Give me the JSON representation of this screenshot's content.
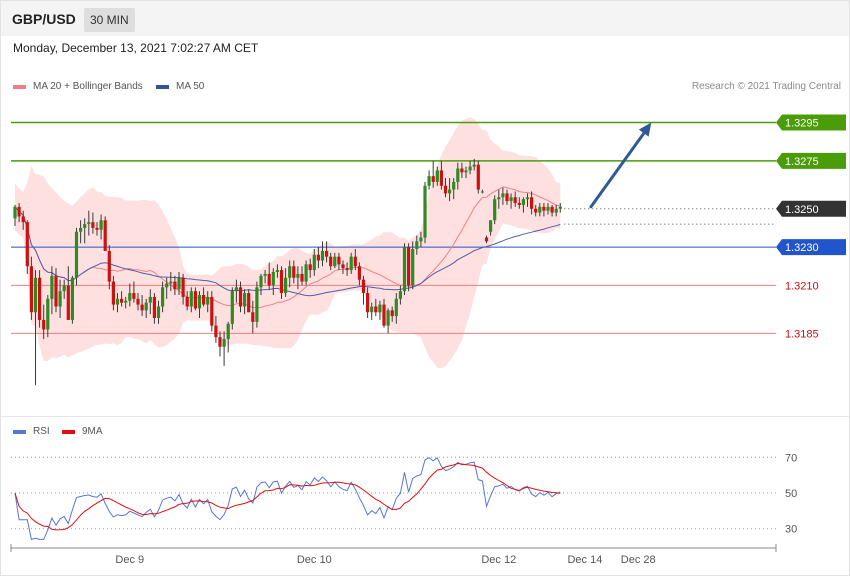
{
  "header": {
    "symbol": "GBP/USD",
    "timeframe": "30 MIN",
    "datetime": "Monday, December 13, 2021 7:02:27 AM CET",
    "credit": "Research © 2021 Trading Central"
  },
  "legend": {
    "ma20_label": "MA 20 + Bollinger Bands",
    "ma50_label": "MA 50",
    "rsi_label": "RSI",
    "ma9_label": "9MA"
  },
  "colors": {
    "bull": "#2e8b22",
    "bear": "#cc1111",
    "band_fill": "#ffd5d5",
    "ma20": "#f08080",
    "ma50": "#4a5fa8",
    "resistance": "#4a9c0a",
    "support": "#f08080",
    "pivot": "#2255cc",
    "current": "#333333",
    "arrow": "#2f5a96",
    "rsi": "#5577d6",
    "rsi_ma": "#dd1111"
  },
  "chart_data": [
    {
      "type": "candlestick",
      "ylim": [
        1.3145,
        1.3313
      ],
      "x_labels": [
        {
          "label": "Dec 9",
          "index": 28
        },
        {
          "label": "Dec 10",
          "index": 73
        },
        {
          "label": "Dec 12",
          "index": 118
        },
        {
          "label": "Dec 14",
          "index": 139
        },
        {
          "label": "Dec 28",
          "index": 152
        }
      ],
      "levels": [
        {
          "value": 1.3295,
          "label": "1.3295",
          "kind": "resistance"
        },
        {
          "value": 1.3275,
          "label": "1.3275",
          "kind": "resistance"
        },
        {
          "value": 1.325,
          "label": "1.3250",
          "kind": "current"
        },
        {
          "value": 1.323,
          "label": "1.3230",
          "kind": "pivot"
        },
        {
          "value": 1.321,
          "label": "1.3210",
          "kind": "support"
        },
        {
          "value": 1.3185,
          "label": "1.3185",
          "kind": "support"
        }
      ],
      "projection": {
        "from": {
          "index": 139,
          "value": 1.3251
        },
        "to": {
          "index": 153,
          "value": 1.3295
        }
      },
      "candles": [
        [
          1.3245,
          1.3252,
          1.3241,
          1.3251
        ],
        [
          1.3251,
          1.3253,
          1.3243,
          1.3246
        ],
        [
          1.3246,
          1.3249,
          1.3239,
          1.3243
        ],
        [
          1.3243,
          1.3244,
          1.3216,
          1.322
        ],
        [
          1.322,
          1.3225,
          1.3192,
          1.3196
        ],
        [
          1.3196,
          1.3218,
          1.3158,
          1.3214
        ],
        [
          1.3214,
          1.3218,
          1.3188,
          1.3192
        ],
        [
          1.3192,
          1.32,
          1.3182,
          1.3187
        ],
        [
          1.3187,
          1.3205,
          1.3183,
          1.3203
        ],
        [
          1.3203,
          1.322,
          1.3195,
          1.3215
        ],
        [
          1.3215,
          1.3219,
          1.3196,
          1.3199
        ],
        [
          1.3199,
          1.3213,
          1.3193,
          1.3207
        ],
        [
          1.3207,
          1.3213,
          1.3203,
          1.321
        ],
        [
          1.321,
          1.322,
          1.3192,
          1.3192
        ],
        [
          1.3192,
          1.3215,
          1.319,
          1.3214
        ],
        [
          1.3214,
          1.324,
          1.321,
          1.3238
        ],
        [
          1.3238,
          1.3244,
          1.3232,
          1.324
        ],
        [
          1.324,
          1.3245,
          1.3232,
          1.3242
        ],
        [
          1.3242,
          1.3249,
          1.3236,
          1.3243
        ],
        [
          1.3243,
          1.3248,
          1.3237,
          1.324
        ],
        [
          1.324,
          1.3243,
          1.3236,
          1.3239
        ],
        [
          1.3239,
          1.3247,
          1.3234,
          1.3244
        ],
        [
          1.3244,
          1.3246,
          1.3228,
          1.3228
        ],
        [
          1.3228,
          1.3231,
          1.3208,
          1.3212
        ],
        [
          1.3212,
          1.3215,
          1.3197,
          1.32
        ],
        [
          1.32,
          1.3206,
          1.3196,
          1.3203
        ],
        [
          1.3203,
          1.3207,
          1.3199,
          1.3201
        ],
        [
          1.3201,
          1.3204,
          1.3198,
          1.3202
        ],
        [
          1.3202,
          1.3211,
          1.3199,
          1.3206
        ],
        [
          1.3206,
          1.3212,
          1.3201,
          1.3203
        ],
        [
          1.3203,
          1.3206,
          1.3197,
          1.32
        ],
        [
          1.32,
          1.3205,
          1.3194,
          1.3197
        ],
        [
          1.3197,
          1.3203,
          1.3193,
          1.3201
        ],
        [
          1.3201,
          1.3208,
          1.3195,
          1.3204
        ],
        [
          1.3204,
          1.3206,
          1.319,
          1.3193
        ],
        [
          1.3193,
          1.3202,
          1.319,
          1.3199
        ],
        [
          1.3199,
          1.3212,
          1.3196,
          1.3209
        ],
        [
          1.3209,
          1.3214,
          1.3203,
          1.3211
        ],
        [
          1.3211,
          1.3217,
          1.3207,
          1.3212
        ],
        [
          1.3212,
          1.3215,
          1.3205,
          1.3208
        ],
        [
          1.3208,
          1.3217,
          1.3205,
          1.3214
        ],
        [
          1.3214,
          1.3216,
          1.32,
          1.3204
        ],
        [
          1.3204,
          1.3207,
          1.3197,
          1.3199
        ],
        [
          1.3199,
          1.3209,
          1.3196,
          1.3207
        ],
        [
          1.3207,
          1.3209,
          1.3197,
          1.3198
        ],
        [
          1.3198,
          1.3207,
          1.3193,
          1.3205
        ],
        [
          1.3205,
          1.3209,
          1.3199,
          1.32
        ],
        [
          1.32,
          1.3207,
          1.3196,
          1.3204
        ],
        [
          1.3204,
          1.3207,
          1.3186,
          1.3189
        ],
        [
          1.3189,
          1.3194,
          1.318,
          1.3183
        ],
        [
          1.3183,
          1.3186,
          1.3173,
          1.3178
        ],
        [
          1.3178,
          1.3186,
          1.3168,
          1.3182
        ],
        [
          1.3182,
          1.3191,
          1.3175,
          1.319
        ],
        [
          1.319,
          1.3209,
          1.3187,
          1.3207
        ],
        [
          1.3207,
          1.3213,
          1.3201,
          1.3209
        ],
        [
          1.3209,
          1.3212,
          1.3196,
          1.3199
        ],
        [
          1.3199,
          1.3208,
          1.3195,
          1.3206
        ],
        [
          1.3206,
          1.3208,
          1.3196,
          1.3196
        ],
        [
          1.3196,
          1.3202,
          1.3185,
          1.3191
        ],
        [
          1.3191,
          1.3212,
          1.3188,
          1.3209
        ],
        [
          1.3209,
          1.3216,
          1.3205,
          1.3215
        ],
        [
          1.3215,
          1.3218,
          1.3211,
          1.3216
        ],
        [
          1.3216,
          1.3222,
          1.3208,
          1.321
        ],
        [
          1.321,
          1.3219,
          1.3205,
          1.3217
        ],
        [
          1.3217,
          1.3221,
          1.3214,
          1.3218
        ],
        [
          1.3218,
          1.322,
          1.3203,
          1.3206
        ],
        [
          1.3206,
          1.3219,
          1.3204,
          1.3214
        ],
        [
          1.3214,
          1.3223,
          1.3209,
          1.322
        ],
        [
          1.322,
          1.3223,
          1.3211,
          1.3214
        ],
        [
          1.3214,
          1.322,
          1.3208,
          1.3216
        ],
        [
          1.3216,
          1.322,
          1.321,
          1.3212
        ],
        [
          1.3212,
          1.3223,
          1.321,
          1.3221
        ],
        [
          1.3221,
          1.3224,
          1.3214,
          1.3218
        ],
        [
          1.3218,
          1.3229,
          1.3215,
          1.3226
        ],
        [
          1.3226,
          1.323,
          1.3219,
          1.3223
        ],
        [
          1.3223,
          1.3233,
          1.322,
          1.3228
        ],
        [
          1.3228,
          1.3233,
          1.3222,
          1.3225
        ],
        [
          1.3225,
          1.3227,
          1.3218,
          1.322
        ],
        [
          1.322,
          1.3227,
          1.3219,
          1.3225
        ],
        [
          1.3225,
          1.3227,
          1.3218,
          1.3221
        ],
        [
          1.3221,
          1.3223,
          1.3216,
          1.3219
        ],
        [
          1.3219,
          1.3222,
          1.3215,
          1.3218
        ],
        [
          1.3218,
          1.3227,
          1.3216,
          1.3225
        ],
        [
          1.3225,
          1.3229,
          1.3218,
          1.322
        ],
        [
          1.322,
          1.3222,
          1.321,
          1.3213
        ],
        [
          1.3213,
          1.3215,
          1.32,
          1.3206
        ],
        [
          1.3206,
          1.3209,
          1.3193,
          1.3196
        ],
        [
          1.3196,
          1.3201,
          1.3192,
          1.3199
        ],
        [
          1.3199,
          1.3203,
          1.3194,
          1.3196
        ],
        [
          1.3196,
          1.3202,
          1.3192,
          1.32
        ],
        [
          1.32,
          1.3203,
          1.3188,
          1.3189
        ],
        [
          1.3189,
          1.3198,
          1.3185,
          1.3197
        ],
        [
          1.3197,
          1.3199,
          1.3191,
          1.3194
        ],
        [
          1.3194,
          1.3206,
          1.319,
          1.3203
        ],
        [
          1.3203,
          1.321,
          1.32,
          1.3207
        ],
        [
          1.3207,
          1.3232,
          1.3205,
          1.323
        ],
        [
          1.323,
          1.3232,
          1.3207,
          1.321
        ],
        [
          1.321,
          1.3233,
          1.3208,
          1.3229
        ],
        [
          1.3229,
          1.3236,
          1.3226,
          1.3233
        ],
        [
          1.3233,
          1.3238,
          1.323,
          1.3235
        ],
        [
          1.3235,
          1.3264,
          1.3232,
          1.3262
        ],
        [
          1.3262,
          1.327,
          1.326,
          1.3267
        ],
        [
          1.3267,
          1.3275,
          1.3261,
          1.3264
        ],
        [
          1.3264,
          1.3272,
          1.3262,
          1.327
        ],
        [
          1.327,
          1.3275,
          1.326,
          1.3262
        ],
        [
          1.3262,
          1.3266,
          1.3256,
          1.3258
        ],
        [
          1.3258,
          1.3266,
          1.3254,
          1.326
        ],
        [
          1.326,
          1.3266,
          1.3255,
          1.3264
        ],
        [
          1.3264,
          1.3274,
          1.326,
          1.3271
        ],
        [
          1.3271,
          1.3274,
          1.3266,
          1.3269
        ],
        [
          1.3269,
          1.3272,
          1.3266,
          1.327
        ],
        [
          1.327,
          1.3275,
          1.3268,
          1.3272
        ],
        [
          1.3272,
          1.3276,
          1.327,
          1.3273
        ],
        [
          1.3273,
          1.3275,
          1.3258,
          1.326
        ],
        [
          1.3259,
          1.326,
          1.3258,
          1.3259
        ],
        [
          1.3235,
          1.3236,
          1.3232,
          1.3233
        ],
        [
          1.3238,
          1.3244,
          1.3236,
          1.3244
        ],
        [
          1.3244,
          1.3257,
          1.3242,
          1.3255
        ],
        [
          1.3255,
          1.326,
          1.325,
          1.3256
        ],
        [
          1.3256,
          1.3261,
          1.3252,
          1.3258
        ],
        [
          1.3258,
          1.326,
          1.3252,
          1.3254
        ],
        [
          1.3254,
          1.3258,
          1.325,
          1.3256
        ],
        [
          1.3256,
          1.3259,
          1.3251,
          1.3253
        ],
        [
          1.3253,
          1.3256,
          1.325,
          1.3252
        ],
        [
          1.3252,
          1.3256,
          1.3248,
          1.3255
        ],
        [
          1.3255,
          1.3258,
          1.3251,
          1.3256
        ],
        [
          1.3256,
          1.3259,
          1.3247,
          1.325
        ],
        [
          1.325,
          1.3252,
          1.3246,
          1.3248
        ],
        [
          1.3248,
          1.3253,
          1.3246,
          1.3251
        ],
        [
          1.3251,
          1.3253,
          1.3246,
          1.3249
        ],
        [
          1.3249,
          1.3253,
          1.3247,
          1.3251
        ],
        [
          1.3251,
          1.3252,
          1.3246,
          1.3248
        ],
        [
          1.3248,
          1.3252,
          1.3246,
          1.325
        ],
        [
          1.325,
          1.3253,
          1.3248,
          1.3251
        ]
      ]
    },
    {
      "type": "line",
      "levels": [
        {
          "value": 70,
          "label": "70"
        },
        {
          "value": 50,
          "label": "50"
        },
        {
          "value": 30,
          "label": "30"
        }
      ],
      "ylim": [
        22,
        78
      ]
    }
  ]
}
